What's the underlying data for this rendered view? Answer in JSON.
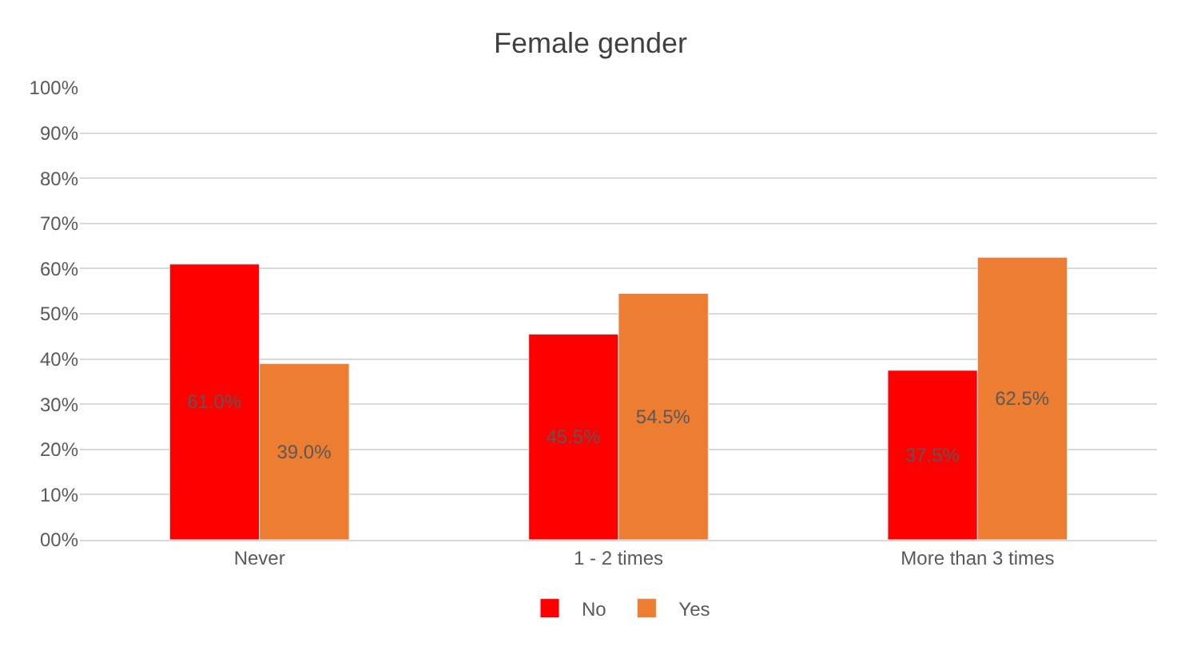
{
  "chart_data": {
    "type": "bar",
    "title": "Female gender",
    "categories": [
      "Never",
      "1 - 2 times",
      "More than 3 times"
    ],
    "series": [
      {
        "name": "No",
        "color": "#ff0000",
        "values": [
          61.0,
          45.5,
          37.5
        ],
        "value_labels": [
          "61.0%",
          "45.5%",
          "37.5%"
        ]
      },
      {
        "name": "Yes",
        "color": "#ed7d31",
        "values": [
          39.0,
          54.5,
          62.5
        ],
        "value_labels": [
          "39.0%",
          "54.5%",
          "62.5%"
        ]
      }
    ],
    "ylim": [
      0,
      100
    ],
    "yticks": [
      {
        "value": 0,
        "label": "00%"
      },
      {
        "value": 10,
        "label": "10%"
      },
      {
        "value": 20,
        "label": "20%"
      },
      {
        "value": 30,
        "label": "30%"
      },
      {
        "value": 40,
        "label": "40%"
      },
      {
        "value": 50,
        "label": "50%"
      },
      {
        "value": 60,
        "label": "60%"
      },
      {
        "value": 70,
        "label": "70%"
      },
      {
        "value": 80,
        "label": "80%"
      },
      {
        "value": 90,
        "label": "90%"
      },
      {
        "value": 100,
        "label": "100%"
      }
    ],
    "grid": "y",
    "legend": "bottom"
  }
}
